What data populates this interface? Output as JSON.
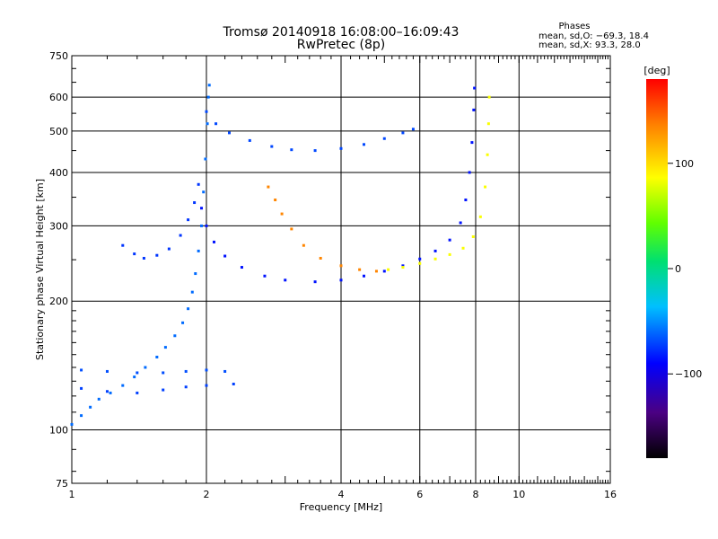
{
  "chart_data": {
    "type": "scatter",
    "title": "Tromsø 20140918 16:08:00–16:09:43",
    "subtitle": "RwPretec (8p)",
    "xlabel": "Frequency [MHz]",
    "ylabel": "Stationary phase Virtual Height [km]",
    "x_scale": "log",
    "y_scale": "log",
    "xlim": [
      1,
      16
    ],
    "ylim": [
      75,
      750
    ],
    "x_ticks": [
      1,
      2,
      4,
      6,
      8,
      10,
      16
    ],
    "x_tick_labels": [
      "1",
      "2",
      "4",
      "6",
      "8",
      "10",
      "16"
    ],
    "y_ticks": [
      75,
      100,
      200,
      300,
      400,
      500,
      600,
      750
    ],
    "y_tick_labels": [
      "75",
      "100",
      "200",
      "300",
      "400",
      "500",
      "600",
      "750"
    ],
    "grid": true,
    "phase_stats": {
      "title": "Phases",
      "line_o": "mean, sd,O: −69.3, 18.4",
      "line_x": "mean, sd,X:  93.3, 28.0"
    },
    "colorbar": {
      "unit": "[deg]",
      "min": -180,
      "max": 180,
      "ticks": [
        100,
        0,
        -100
      ],
      "tick_labels": [
        "100",
        "0",
        "−100"
      ]
    },
    "series": [
      {
        "trace": "o_f1",
        "phase": -60,
        "points": [
          [
            1.0,
            103
          ],
          [
            1.05,
            108
          ],
          [
            1.1,
            113
          ],
          [
            1.15,
            118
          ],
          [
            1.22,
            122
          ],
          [
            1.3,
            127
          ],
          [
            1.38,
            133
          ],
          [
            1.46,
            140
          ],
          [
            1.55,
            148
          ],
          [
            1.62,
            156
          ],
          [
            1.7,
            166
          ],
          [
            1.77,
            178
          ],
          [
            1.82,
            192
          ],
          [
            1.86,
            210
          ],
          [
            1.89,
            232
          ],
          [
            1.92,
            262
          ],
          [
            1.95,
            300
          ],
          [
            1.97,
            360
          ],
          [
            1.99,
            430
          ],
          [
            2.01,
            520
          ],
          [
            2.02,
            600
          ],
          [
            2.03,
            640
          ]
        ]
      },
      {
        "trace": "o_f1_upper",
        "phase": -75,
        "points": [
          [
            1.3,
            270
          ],
          [
            1.38,
            258
          ],
          [
            1.45,
            252
          ],
          [
            1.55,
            256
          ],
          [
            1.65,
            265
          ],
          [
            1.75,
            285
          ],
          [
            1.82,
            310
          ],
          [
            1.88,
            340
          ],
          [
            1.92,
            375
          ]
        ]
      },
      {
        "trace": "o_f2",
        "phase": -85,
        "points": [
          [
            1.95,
            330
          ],
          [
            2.0,
            300
          ],
          [
            2.08,
            275
          ],
          [
            2.2,
            255
          ],
          [
            2.4,
            240
          ],
          [
            2.7,
            229
          ],
          [
            3.0,
            224
          ],
          [
            3.5,
            222
          ],
          [
            4.0,
            224
          ],
          [
            4.5,
            229
          ],
          [
            5.0,
            235
          ],
          [
            5.5,
            242
          ],
          [
            6.0,
            251
          ],
          [
            6.5,
            262
          ],
          [
            7.0,
            278
          ],
          [
            7.4,
            305
          ],
          [
            7.6,
            345
          ],
          [
            7.75,
            400
          ],
          [
            7.85,
            470
          ],
          [
            7.92,
            560
          ],
          [
            7.95,
            630
          ]
        ]
      },
      {
        "trace": "o_f2_layer",
        "phase": -70,
        "points": [
          [
            2.0,
            555
          ],
          [
            2.1,
            520
          ],
          [
            2.25,
            495
          ],
          [
            2.5,
            475
          ],
          [
            2.8,
            460
          ],
          [
            3.1,
            452
          ],
          [
            3.5,
            450
          ],
          [
            4.0,
            455
          ],
          [
            4.5,
            465
          ],
          [
            5.0,
            480
          ],
          [
            5.5,
            495
          ],
          [
            5.8,
            505
          ]
        ]
      },
      {
        "trace": "x_f2",
        "phase": 135,
        "points": [
          [
            2.75,
            370
          ],
          [
            2.85,
            345
          ],
          [
            2.95,
            320
          ],
          [
            3.1,
            295
          ],
          [
            3.3,
            270
          ],
          [
            3.6,
            252
          ],
          [
            4.0,
            242
          ],
          [
            4.4,
            237
          ],
          [
            4.8,
            235
          ]
        ]
      },
      {
        "trace": "x_f2_high",
        "phase": 85,
        "points": [
          [
            5.1,
            237
          ],
          [
            5.5,
            240
          ],
          [
            6.0,
            245
          ],
          [
            6.5,
            251
          ],
          [
            7.0,
            257
          ],
          [
            7.5,
            266
          ],
          [
            7.9,
            283
          ],
          [
            8.2,
            315
          ],
          [
            8.4,
            370
          ],
          [
            8.5,
            440
          ],
          [
            8.55,
            520
          ],
          [
            8.58,
            600
          ]
        ]
      },
      {
        "trace": "o_lower_band",
        "phase": -68,
        "points": [
          [
            1.05,
            138
          ],
          [
            1.2,
            137
          ],
          [
            1.4,
            136
          ],
          [
            1.6,
            136
          ],
          [
            1.8,
            137
          ],
          [
            2.0,
            138
          ],
          [
            2.2,
            137
          ]
        ]
      },
      {
        "trace": "o_low_tail",
        "phase": -72,
        "points": [
          [
            1.05,
            125
          ],
          [
            1.2,
            123
          ],
          [
            1.4,
            122
          ],
          [
            1.6,
            124
          ],
          [
            1.8,
            126
          ],
          [
            2.0,
            127
          ],
          [
            2.3,
            128
          ]
        ]
      }
    ]
  }
}
